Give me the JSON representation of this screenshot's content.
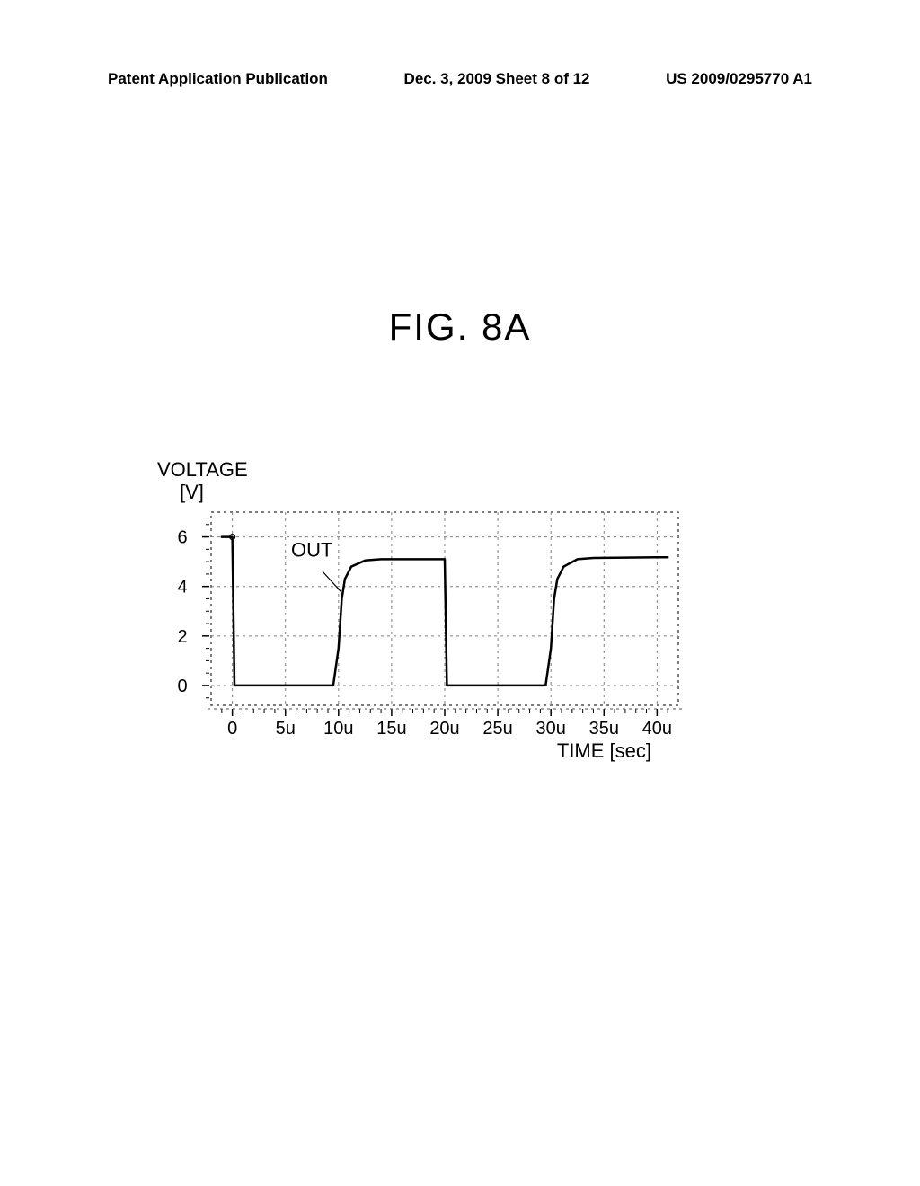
{
  "header": {
    "left": "Patent Application Publication",
    "center": "Dec. 3, 2009  Sheet 8 of 12",
    "right": "US 2009/0295770 A1"
  },
  "figure": {
    "title": "FIG. 8A",
    "y_axis_label_top": "VOLTAGE",
    "y_axis_label_unit": "[V]",
    "x_axis_label": "TIME [sec]",
    "out_label": "OUT",
    "y_ticks": [
      0,
      2,
      4,
      6
    ],
    "x_ticks": [
      "0",
      "5u",
      "10u",
      "15u",
      "20u",
      "25u",
      "30u",
      "35u",
      "40u"
    ],
    "ylim": [
      -0.8,
      7
    ],
    "xlim": [
      -2,
      42
    ],
    "waveform": [
      [
        -1,
        6.0
      ],
      [
        0,
        6.0
      ],
      [
        0.2,
        0
      ],
      [
        9.5,
        0
      ],
      [
        10,
        1.5
      ],
      [
        10.3,
        3.5
      ],
      [
        10.6,
        4.3
      ],
      [
        11.2,
        4.8
      ],
      [
        12.5,
        5.05
      ],
      [
        14,
        5.1
      ],
      [
        20,
        5.1
      ],
      [
        20.2,
        0
      ],
      [
        29.5,
        0
      ],
      [
        30,
        1.5
      ],
      [
        30.3,
        3.5
      ],
      [
        30.6,
        4.3
      ],
      [
        31.2,
        4.8
      ],
      [
        32.5,
        5.1
      ],
      [
        34,
        5.15
      ],
      [
        40,
        5.18
      ],
      [
        41,
        5.18
      ]
    ],
    "colors": {
      "background": "#ffffff",
      "waveform": "#000000",
      "grid": "#808080",
      "border": "#505050",
      "text": "#000000"
    },
    "line_width": 2.5,
    "grid_dash": "3,4"
  }
}
